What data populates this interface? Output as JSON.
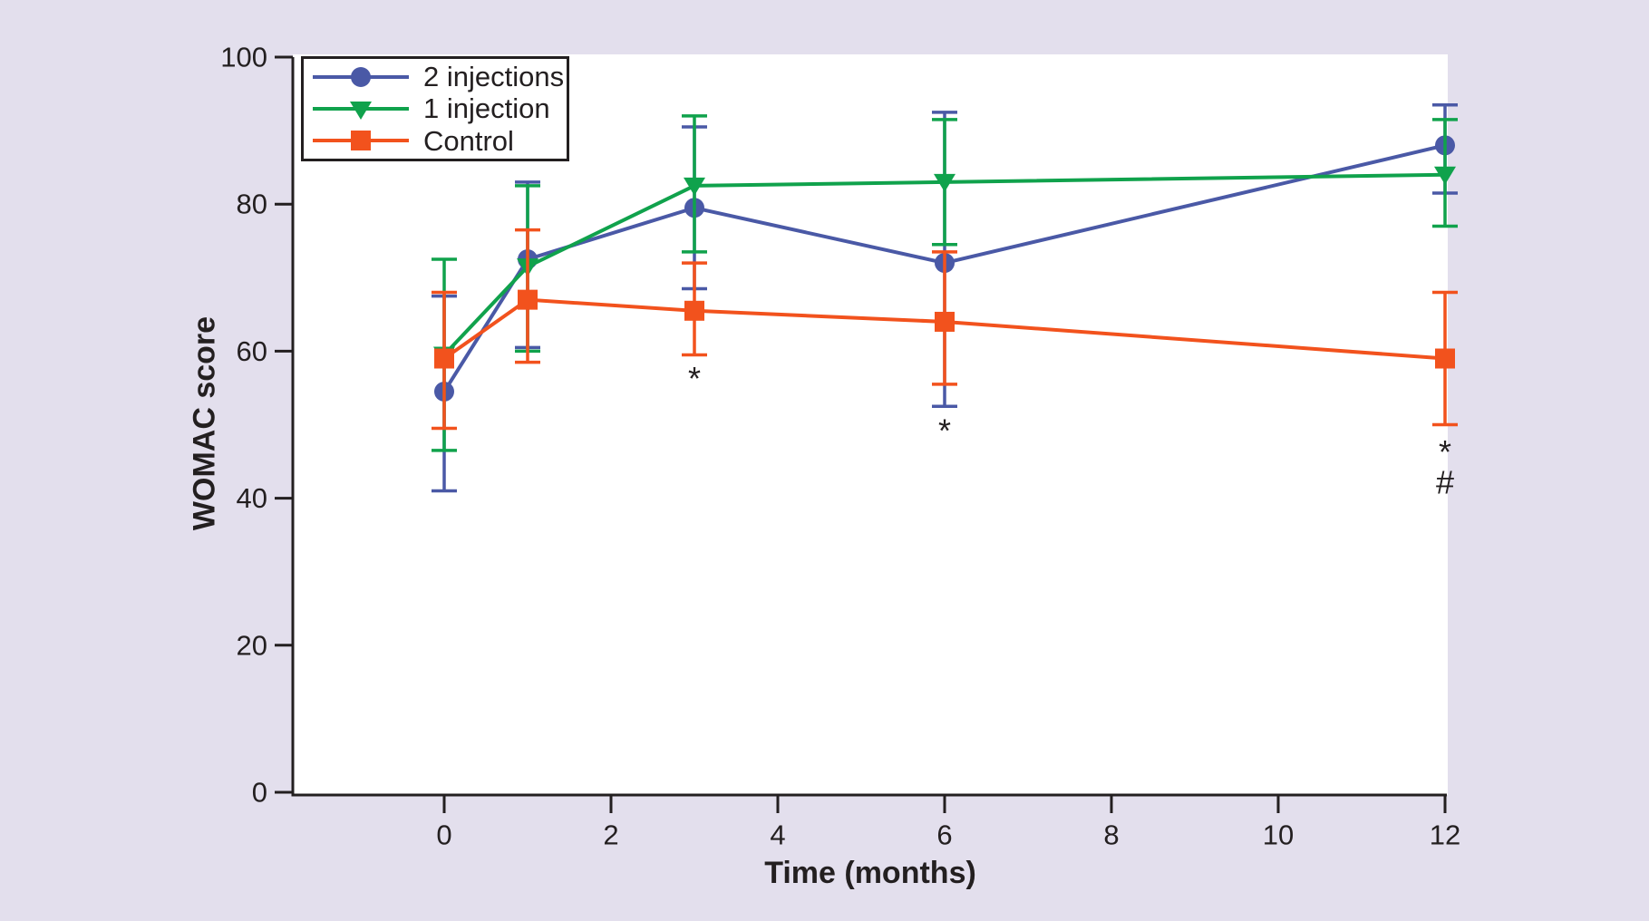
{
  "figure": {
    "page_background": "#E3DFED",
    "plot_background": "#FFFFFF",
    "text_color": "#231F20",
    "axis_color": "#231F20"
  },
  "chart_data": {
    "type": "line",
    "title": "",
    "xlabel": "Time (months)",
    "ylabel": "WOMAC score",
    "x_ticks": [
      0,
      2,
      4,
      6,
      8,
      10,
      12
    ],
    "y_ticks": [
      0,
      20,
      40,
      60,
      80,
      100
    ],
    "xlim": [
      -1.8,
      12
    ],
    "ylim": [
      0,
      100
    ],
    "grid": false,
    "legend_position": "top-left",
    "error_bars": true,
    "x": [
      0,
      1,
      3,
      6,
      12
    ],
    "series": [
      {
        "name": "2 injections",
        "color": "#4A59A6",
        "marker": "circle",
        "values": [
          54.5,
          72.5,
          79.5,
          72,
          88
        ],
        "upper": [
          67.5,
          83,
          90.5,
          92.5,
          93.5
        ],
        "lower": [
          41,
          60.5,
          68.5,
          52.5,
          81.5
        ]
      },
      {
        "name": "1 injection",
        "color": "#10A24C",
        "marker": "triangle-down",
        "values": [
          59.5,
          71.5,
          82.5,
          83,
          84
        ],
        "upper": [
          72.5,
          82.5,
          92,
          91.5,
          91.5
        ],
        "lower": [
          46.5,
          60,
          73.5,
          74.5,
          77
        ]
      },
      {
        "name": "Control",
        "color": "#F2521D",
        "marker": "square",
        "values": [
          59,
          67,
          65.5,
          64,
          59
        ],
        "upper": [
          68,
          76.5,
          72,
          73.5,
          68
        ],
        "lower": [
          49.5,
          58.5,
          59.5,
          55.5,
          50
        ]
      }
    ],
    "annotations": [
      {
        "x": 3,
        "y": 56.3,
        "text": "*"
      },
      {
        "x": 6,
        "y": 49.2,
        "text": "*"
      },
      {
        "x": 12,
        "y": 46.3,
        "text": "*"
      },
      {
        "x": 12,
        "y": 42.2,
        "text": "#"
      }
    ]
  }
}
